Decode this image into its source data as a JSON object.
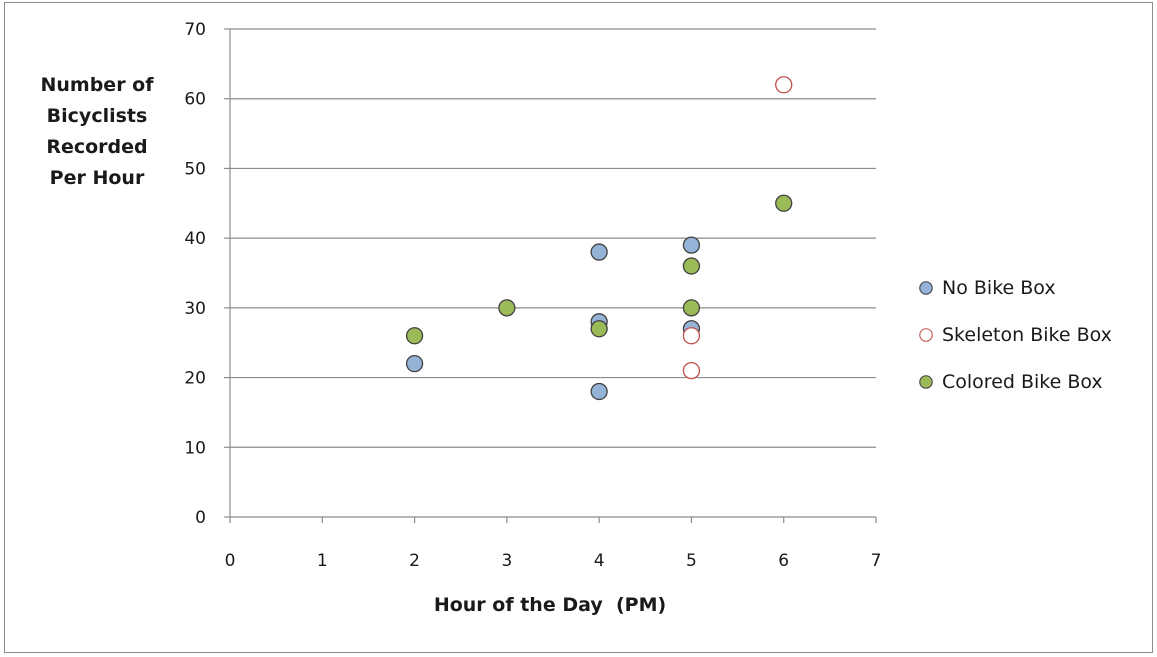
{
  "chart_data": {
    "type": "scatter",
    "ylabel_lines": [
      "Number of",
      "Bicyclists",
      "Recorded",
      "Per Hour"
    ],
    "xlabel": "Hour of the Day  (PM)",
    "xlim": [
      0,
      7
    ],
    "ylim": [
      0,
      70
    ],
    "x_ticks": [
      0,
      1,
      2,
      3,
      4,
      5,
      6,
      7
    ],
    "y_ticks": [
      0,
      10,
      20,
      30,
      40,
      50,
      60,
      70
    ],
    "grid": "horizontal",
    "legend_position": "right",
    "series": [
      {
        "name": "No Bike Box",
        "marker": "filled-circle",
        "fill": "#95b3d7",
        "stroke": "#404040",
        "points": [
          [
            2,
            22
          ],
          [
            4,
            18
          ],
          [
            4,
            28
          ],
          [
            4,
            38
          ],
          [
            5,
            39
          ],
          [
            5,
            27
          ]
        ]
      },
      {
        "name": "Skeleton Bike Box",
        "marker": "open-circle",
        "fill": "#ffffff",
        "stroke": "#c0504d",
        "points": [
          [
            5,
            21
          ],
          [
            5,
            26
          ],
          [
            6,
            62
          ]
        ]
      },
      {
        "name": "Colored Bike Box",
        "marker": "filled-circle",
        "fill": "#9bbb59",
        "stroke": "#404040",
        "points": [
          [
            2,
            26
          ],
          [
            3,
            30
          ],
          [
            4,
            27
          ],
          [
            5,
            30
          ],
          [
            5,
            36
          ],
          [
            6,
            45
          ]
        ]
      }
    ]
  }
}
